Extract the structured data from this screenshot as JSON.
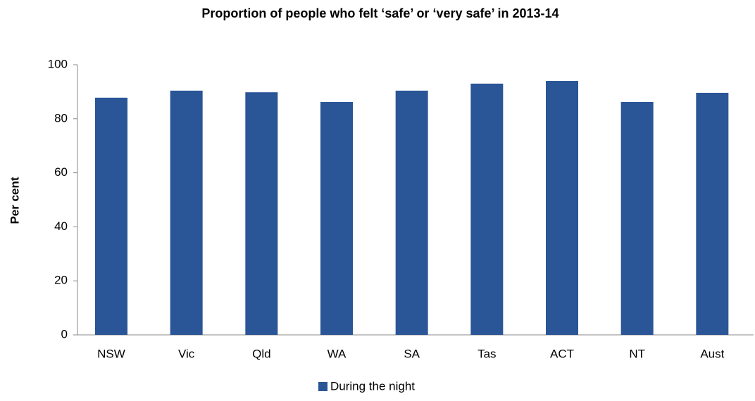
{
  "chart_data": {
    "type": "bar",
    "title": "Proportion of people who felt ‘safe’ or ‘very safe’ in 2013-14",
    "y_label": "Per cent",
    "categories": [
      "NSW",
      "Vic",
      "Qld",
      "WA",
      "SA",
      "Tas",
      "ACT",
      "NT",
      "Aust"
    ],
    "series": [
      {
        "name": "During the night",
        "color": "#2a5597",
        "values": [
          87.8,
          90.4,
          89.8,
          86.2,
          90.4,
          93.0,
          94.0,
          86.2,
          89.6
        ]
      }
    ],
    "ylim": [
      0,
      100
    ],
    "yticks": [
      0,
      20,
      40,
      60,
      80,
      100
    ],
    "grid": false,
    "legend": "bottom"
  }
}
